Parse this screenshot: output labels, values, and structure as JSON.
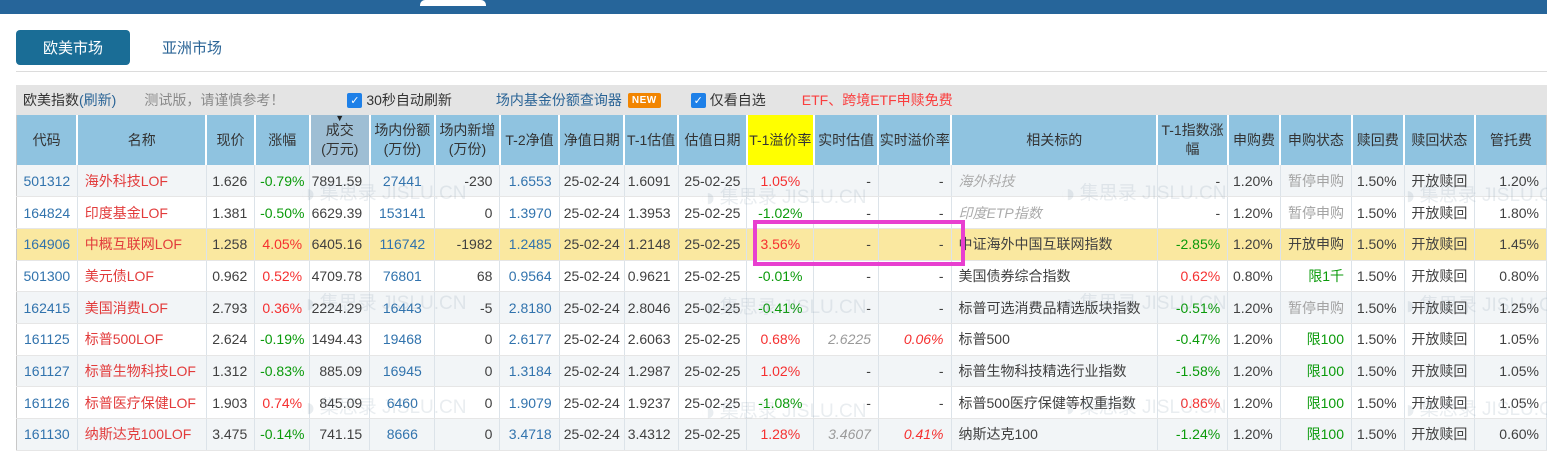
{
  "tabs": [
    {
      "label": "欧美市场",
      "active": true
    },
    {
      "label": "亚洲市场",
      "active": false
    }
  ],
  "toolbar": {
    "title": "欧美指数",
    "refresh_label": "(刷新)",
    "warning": "测试版，请谨慎参考！",
    "auto_refresh_label": "30秒自动刷新",
    "query_tool_label": "场内基金份额查询器",
    "new_badge": "NEW",
    "only_watchlist_label": "仅看自选",
    "promo": "ETF、跨境ETF申赎免费"
  },
  "watermark": "集思录 JISLU.CN",
  "table": {
    "columns": [
      "代码",
      "名称",
      "现价",
      "涨幅",
      "成交\n(万元)",
      "场内份额\n(万份)",
      "场内新增\n(万份)",
      "T-2净值",
      "净值日期",
      "T-1估值",
      "估值日期",
      "T-1溢价率",
      "实时估值",
      "实时溢价率",
      "相关标的",
      "T-1指数涨幅",
      "申购费",
      "申购状态",
      "赎回费",
      "赎回状态",
      "管托费"
    ],
    "sorted_column_index": 4,
    "yellow_column_index": 11,
    "rows": [
      {
        "code": "501312",
        "name": "海外科技LOF",
        "price": "1.626",
        "chg": "-0.79%",
        "chg_cls": "down",
        "vol": "7891.59",
        "shares": "27441",
        "added": "-230",
        "t2nav": "1.6553",
        "nav_date": "25-02-24",
        "t1est": "1.6091",
        "est_date": "25-02-25",
        "t1prem": "1.05%",
        "t1prem_cls": "up",
        "rt_est": "-",
        "rt_prem": "-",
        "related": "海外科技",
        "related_muted": true,
        "idx_chg": "-",
        "idx_cls": "dark",
        "sub_fee": "1.20%",
        "sub_status": "暂停申购",
        "sub_status_cls": "status-muted",
        "red_fee": "1.50%",
        "red_status": "开放赎回",
        "mgmt_fee": "1.20%",
        "selected": false
      },
      {
        "code": "164824",
        "name": "印度基金LOF",
        "price": "1.381",
        "chg": "-0.50%",
        "chg_cls": "down",
        "vol": "6629.39",
        "shares": "153141",
        "added": "0",
        "t2nav": "1.3970",
        "nav_date": "25-02-24",
        "t1est": "1.3953",
        "est_date": "25-02-25",
        "t1prem": "-1.02%",
        "t1prem_cls": "down",
        "rt_est": "-",
        "rt_prem": "-",
        "related": "印度ETP指数",
        "related_muted": true,
        "idx_chg": "-",
        "idx_cls": "dark",
        "sub_fee": "1.20%",
        "sub_status": "暂停申购",
        "sub_status_cls": "status-muted",
        "red_fee": "1.50%",
        "red_status": "开放赎回",
        "mgmt_fee": "1.80%",
        "selected": false
      },
      {
        "code": "164906",
        "name": "中概互联网LOF",
        "price": "1.258",
        "chg": "4.05%",
        "chg_cls": "up",
        "vol": "6405.16",
        "shares": "116742",
        "added": "-1982",
        "t2nav": "1.2485",
        "nav_date": "25-02-24",
        "t1est": "1.2148",
        "est_date": "25-02-25",
        "t1prem": "3.56%",
        "t1prem_cls": "up",
        "rt_est": "-",
        "rt_prem": "-",
        "related": "中证海外中国互联网指数",
        "related_muted": false,
        "idx_chg": "-2.85%",
        "idx_cls": "down",
        "sub_fee": "1.20%",
        "sub_status": "开放申购",
        "sub_status_cls": "dark",
        "red_fee": "1.50%",
        "red_status": "开放赎回",
        "mgmt_fee": "1.45%",
        "selected": true
      },
      {
        "code": "501300",
        "name": "美元债LOF",
        "price": "0.962",
        "chg": "0.52%",
        "chg_cls": "up",
        "vol": "4709.78",
        "shares": "76801",
        "added": "68",
        "t2nav": "0.9564",
        "nav_date": "25-02-24",
        "t1est": "0.9621",
        "est_date": "25-02-25",
        "t1prem": "-0.01%",
        "t1prem_cls": "down",
        "rt_est": "-",
        "rt_prem": "-",
        "related": "美国债券综合指数",
        "related_muted": false,
        "idx_chg": "0.62%",
        "idx_cls": "up",
        "sub_fee": "0.80%",
        "sub_status": "限1千",
        "sub_status_cls": "limit",
        "red_fee": "1.50%",
        "red_status": "开放赎回",
        "mgmt_fee": "0.80%",
        "selected": false
      },
      {
        "code": "162415",
        "name": "美国消费LOF",
        "price": "2.793",
        "chg": "0.36%",
        "chg_cls": "up",
        "vol": "2224.29",
        "shares": "16443",
        "added": "-5",
        "t2nav": "2.8180",
        "nav_date": "25-02-24",
        "t1est": "2.8046",
        "est_date": "25-02-25",
        "t1prem": "-0.41%",
        "t1prem_cls": "down",
        "rt_est": "-",
        "rt_prem": "-",
        "related": "标普可选消费品精选版块指数",
        "related_muted": false,
        "idx_chg": "-0.51%",
        "idx_cls": "down",
        "sub_fee": "1.20%",
        "sub_status": "暂停申购",
        "sub_status_cls": "status-muted",
        "red_fee": "1.50%",
        "red_status": "开放赎回",
        "mgmt_fee": "1.25%",
        "selected": false
      },
      {
        "code": "161125",
        "name": "标普500LOF",
        "price": "2.624",
        "chg": "-0.19%",
        "chg_cls": "down",
        "vol": "1494.43",
        "shares": "19468",
        "added": "0",
        "t2nav": "2.6177",
        "nav_date": "25-02-24",
        "t1est": "2.6063",
        "est_date": "25-02-25",
        "t1prem": "0.68%",
        "t1prem_cls": "up",
        "rt_est": "2.6225",
        "rt_prem": "0.06%",
        "related": "标普500",
        "related_muted": false,
        "idx_chg": "-0.47%",
        "idx_cls": "down",
        "sub_fee": "1.20%",
        "sub_status": "限100",
        "sub_status_cls": "limit",
        "red_fee": "1.50%",
        "red_status": "开放赎回",
        "mgmt_fee": "1.05%",
        "selected": false
      },
      {
        "code": "161127",
        "name": "标普生物科技LOF",
        "price": "1.312",
        "chg": "-0.83%",
        "chg_cls": "down",
        "vol": "885.09",
        "shares": "16945",
        "added": "0",
        "t2nav": "1.3184",
        "nav_date": "25-02-24",
        "t1est": "1.2987",
        "est_date": "25-02-25",
        "t1prem": "1.02%",
        "t1prem_cls": "up",
        "rt_est": "-",
        "rt_prem": "-",
        "related": "标普生物科技精选行业指数",
        "related_muted": false,
        "idx_chg": "-1.58%",
        "idx_cls": "down",
        "sub_fee": "1.20%",
        "sub_status": "限100",
        "sub_status_cls": "limit",
        "red_fee": "1.50%",
        "red_status": "开放赎回",
        "mgmt_fee": "1.05%",
        "selected": false
      },
      {
        "code": "161126",
        "name": "标普医疗保健LOF",
        "price": "1.903",
        "chg": "0.74%",
        "chg_cls": "up",
        "vol": "845.09",
        "shares": "6460",
        "added": "0",
        "t2nav": "1.9079",
        "nav_date": "25-02-24",
        "t1est": "1.9237",
        "est_date": "25-02-25",
        "t1prem": "-1.08%",
        "t1prem_cls": "down",
        "rt_est": "-",
        "rt_prem": "-",
        "related": "标普500医疗保健等权重指数",
        "related_muted": false,
        "idx_chg": "0.86%",
        "idx_cls": "up",
        "sub_fee": "1.20%",
        "sub_status": "限100",
        "sub_status_cls": "limit",
        "red_fee": "1.50%",
        "red_status": "开放赎回",
        "mgmt_fee": "1.05%",
        "selected": false
      },
      {
        "code": "161130",
        "name": "纳斯达克100LOF",
        "price": "3.475",
        "chg": "-0.14%",
        "chg_cls": "down",
        "vol": "741.15",
        "shares": "8666",
        "added": "0",
        "t2nav": "3.4718",
        "nav_date": "25-02-24",
        "t1est": "3.4312",
        "est_date": "25-02-25",
        "t1prem": "1.28%",
        "t1prem_cls": "up",
        "rt_est": "3.4607",
        "rt_prem": "0.41%",
        "related": "纳斯达克100",
        "related_muted": false,
        "idx_chg": "-1.24%",
        "idx_cls": "down",
        "sub_fee": "1.20%",
        "sub_status": "限100",
        "sub_status_cls": "limit",
        "red_fee": "1.50%",
        "red_status": "开放赎回",
        "mgmt_fee": "0.60%",
        "selected": false
      }
    ]
  }
}
